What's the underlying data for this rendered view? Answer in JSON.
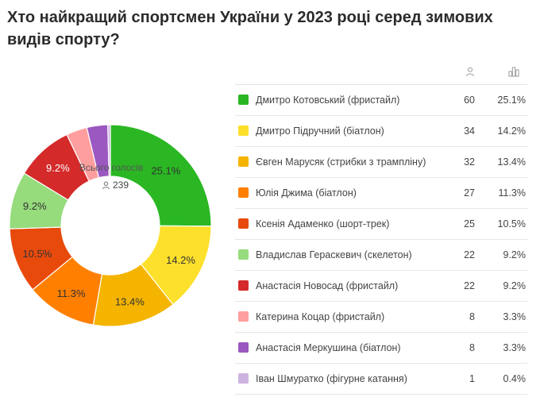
{
  "title": "Хто найкращий спортсмен України у 2023 році серед зимових видів спорту?",
  "center": {
    "label": "Всього голосів",
    "total": "239"
  },
  "icons": {
    "count_header": "person-icon",
    "percent_header": "bar-chart-icon",
    "total": "person-icon"
  },
  "chart_data": {
    "type": "pie",
    "title": "Хто найкращий спортсмен України у 2023 році серед зимових видів спорту?",
    "categories": [
      "Дмитро Котовський (фристайл)",
      "Дмитро Підручний (біатлон)",
      "Євген Марусяк (стрибки з трампліну)",
      "Юлія Джима (біатлон)",
      "Ксенія Адаменко (шорт-трек)",
      "Владислав Гераскевич (скелетон)",
      "Анастасія Новосад (фристайл)",
      "Катерина Коцар (фристайл)",
      "Анастасія Меркушина (біатлон)",
      "Іван Шмуратко (фігурне катання)"
    ],
    "values": [
      60,
      34,
      32,
      27,
      25,
      22,
      22,
      8,
      8,
      1
    ],
    "percents": [
      "25.1%",
      "14.2%",
      "13.4%",
      "11.3%",
      "10.5%",
      "9.2%",
      "9.2%",
      "3.3%",
      "3.3%",
      "0.4%"
    ],
    "colors": [
      "#2ab723",
      "#fde02b",
      "#f5b400",
      "#ff7f00",
      "#e84a0c",
      "#96db7c",
      "#d42a2a",
      "#ff9e9e",
      "#9a58c0",
      "#cdb3e0"
    ],
    "slice_labels": [
      "25.1%",
      "14.2%",
      "13.4%",
      "11.3%",
      "10.5%",
      "9.2%",
      "9.2%",
      "",
      "",
      ""
    ],
    "donut": true,
    "legend": "right-table"
  }
}
